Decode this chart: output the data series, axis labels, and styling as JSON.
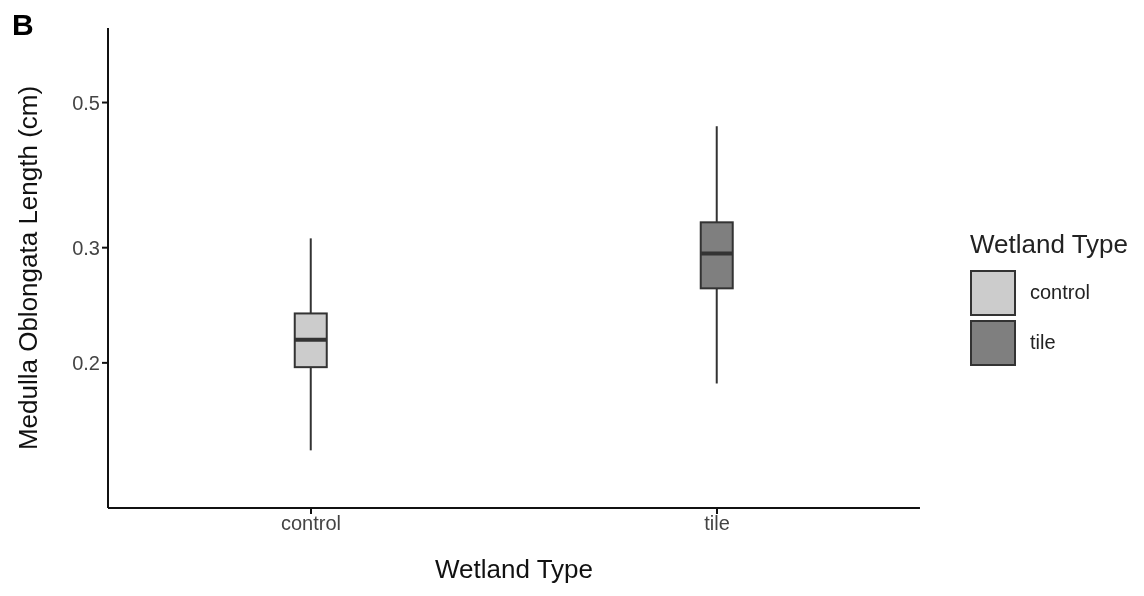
{
  "chart_data": {
    "type": "box",
    "annotations": [
      "B"
    ],
    "xlabel": "Wetland Type",
    "ylabel": "Medulla Oblongata Length (cm)",
    "legend_title": "Wetland Type",
    "legend": "right",
    "log": true,
    "grid": false,
    "categories": [
      "control",
      "tile"
    ],
    "series": [
      {
        "name": "control",
        "color": "#cccccc",
        "boxes": [
          {
            "low": 0.147,
            "q1": 0.197,
            "median": 0.217,
            "q3": 0.238,
            "high": 0.31
          },
          null
        ]
      },
      {
        "name": "tile",
        "color": "#7f7f7f",
        "boxes": [
          null,
          {
            "low": 0.186,
            "q1": 0.26,
            "median": 0.294,
            "q3": 0.328,
            "high": 0.46
          }
        ]
      }
    ],
    "ylim": [
      0.12,
      0.65
    ],
    "yticks": [
      0.2,
      0.3,
      0.5
    ]
  }
}
